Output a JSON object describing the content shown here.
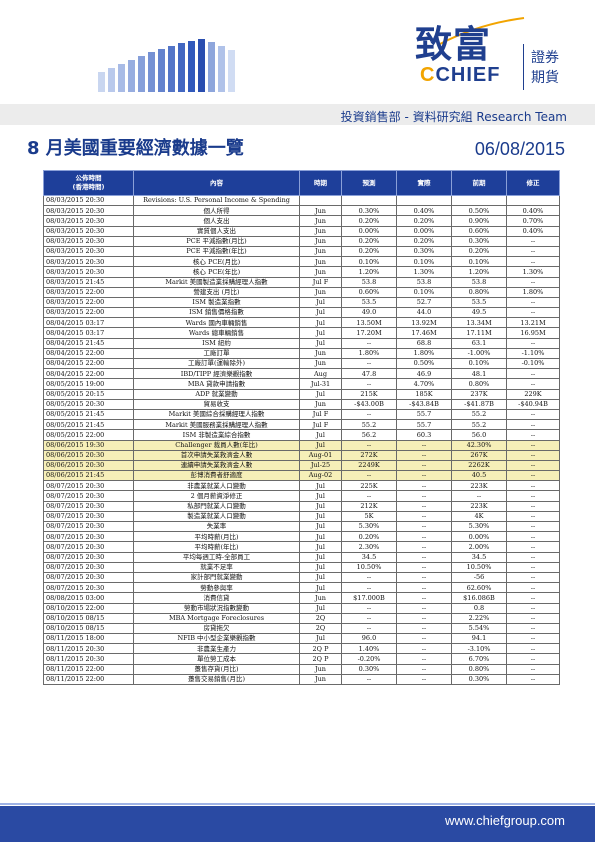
{
  "header": {
    "logo_cn": "致富",
    "logo_en_c": "C",
    "logo_en_rest": "CHIEF",
    "logo_side_1": "證券",
    "logo_side_2": "期貨",
    "department": "投資銷售部 - 資料研究組 Research Team",
    "title": "8 月美國重要經濟數據一覽",
    "date": "06/08/2015",
    "brand_color": "#1a3b8c",
    "accent_color": "#f2a400"
  },
  "table": {
    "headers": {
      "time_line1": "公佈時間",
      "time_line2": "(香港時間)",
      "content": "內容",
      "period": "時期",
      "forecast": "預測",
      "actual": "實際",
      "previous": "前期",
      "revised": "修正"
    },
    "rows": [
      {
        "time": "08/03/2015 20:30",
        "content": "Revisions: U.S. Personal Income & Spending",
        "period": "",
        "forecast": "",
        "actual": "",
        "previous": "",
        "revised": ""
      },
      {
        "time": "08/03/2015 20:30",
        "content": "個人所得",
        "period": "Jun",
        "forecast": "0.30%",
        "actual": "0.40%",
        "previous": "0.50%",
        "revised": "0.40%"
      },
      {
        "time": "08/03/2015 20:30",
        "content": "個人支出",
        "period": "Jun",
        "forecast": "0.20%",
        "actual": "0.20%",
        "previous": "0.90%",
        "revised": "0.70%"
      },
      {
        "time": "08/03/2015 20:30",
        "content": "實質個人支出",
        "period": "Jun",
        "forecast": "0.00%",
        "actual": "0.00%",
        "previous": "0.60%",
        "revised": "0.40%"
      },
      {
        "time": "08/03/2015 20:30",
        "content": "PCE 平減指數(月比)",
        "period": "Jun",
        "forecast": "0.20%",
        "actual": "0.20%",
        "previous": "0.30%",
        "revised": "--"
      },
      {
        "time": "08/03/2015 20:30",
        "content": "PCE 平減指數(年比)",
        "period": "Jun",
        "forecast": "0.20%",
        "actual": "0.30%",
        "previous": "0.20%",
        "revised": "--"
      },
      {
        "time": "08/03/2015 20:30",
        "content": "核心 PCE(月比)",
        "period": "Jun",
        "forecast": "0.10%",
        "actual": "0.10%",
        "previous": "0.10%",
        "revised": "--"
      },
      {
        "time": "08/03/2015 20:30",
        "content": "核心 PCE(年比)",
        "period": "Jun",
        "forecast": "1.20%",
        "actual": "1.30%",
        "previous": "1.20%",
        "revised": "1.30%"
      },
      {
        "time": "08/03/2015 21:45",
        "content": "Markit 美國製造業採購經理人指數",
        "period": "Jul F",
        "forecast": "53.8",
        "actual": "53.8",
        "previous": "53.8",
        "revised": "--"
      },
      {
        "time": "08/03/2015 22:00",
        "content": "營建支出 (月比)",
        "period": "Jun",
        "forecast": "0.60%",
        "actual": "0.10%",
        "previous": "0.80%",
        "revised": "1.80%"
      },
      {
        "time": "08/03/2015 22:00",
        "content": "ISM 製造業指數",
        "period": "Jul",
        "forecast": "53.5",
        "actual": "52.7",
        "previous": "53.5",
        "revised": "--"
      },
      {
        "time": "08/03/2015 22:00",
        "content": "ISM 銷售價格指數",
        "period": "Jul",
        "forecast": "49.0",
        "actual": "44.0",
        "previous": "49.5",
        "revised": "--"
      },
      {
        "time": "08/04/2015 03:17",
        "content": "Wards 國內車輛銷售",
        "period": "Jul",
        "forecast": "13.50M",
        "actual": "13.92M",
        "previous": "13.34M",
        "revised": "13.21M"
      },
      {
        "time": "08/04/2015 03:17",
        "content": "Wards 總車輛銷售",
        "period": "Jul",
        "forecast": "17.20M",
        "actual": "17.46M",
        "previous": "17.11M",
        "revised": "16.95M"
      },
      {
        "time": "08/04/2015 21:45",
        "content": "ISM 紐約",
        "period": "Jul",
        "forecast": "--",
        "actual": "68.8",
        "previous": "63.1",
        "revised": "--"
      },
      {
        "time": "08/04/2015 22:00",
        "content": "工廠訂單",
        "period": "Jun",
        "forecast": "1.80%",
        "actual": "1.80%",
        "previous": "-1.00%",
        "revised": "-1.10%"
      },
      {
        "time": "08/04/2015 22:00",
        "content": "工廠訂單(運輸除外)",
        "period": "Jun",
        "forecast": "--",
        "actual": "0.50%",
        "previous": "0.10%",
        "revised": "-0.10%"
      },
      {
        "time": "08/04/2015 22:00",
        "content": "IBD/TIPP 經濟樂觀指數",
        "period": "Aug",
        "forecast": "47.8",
        "actual": "46.9",
        "previous": "48.1",
        "revised": "--"
      },
      {
        "time": "08/05/2015 19:00",
        "content": "MBA 貸款申請指數",
        "period": "Jul-31",
        "forecast": "--",
        "actual": "4.70%",
        "previous": "0.80%",
        "revised": "--"
      },
      {
        "time": "08/05/2015 20:15",
        "content": "ADP 就業變動",
        "period": "Jul",
        "forecast": "215K",
        "actual": "185K",
        "previous": "237K",
        "revised": "229K"
      },
      {
        "time": "08/05/2015 20:30",
        "content": "貿易收支",
        "period": "Jun",
        "forecast": "-$43.00B",
        "actual": "-$43.84B",
        "previous": "-$41.87B",
        "revised": "-$40.94B"
      },
      {
        "time": "08/05/2015 21:45",
        "content": "Markit 美國綜合採購經理人指數",
        "period": "Jul F",
        "forecast": "--",
        "actual": "55.7",
        "previous": "55.2",
        "revised": "--"
      },
      {
        "time": "08/05/2015 21:45",
        "content": "Markit 美國服務業採購經理人指數",
        "period": "Jul F",
        "forecast": "55.2",
        "actual": "55.7",
        "previous": "55.2",
        "revised": "--"
      },
      {
        "time": "08/05/2015 22:00",
        "content": "ISM 非製造業綜合指數",
        "period": "Jul",
        "forecast": "56.2",
        "actual": "60.3",
        "previous": "56.0",
        "revised": "--"
      },
      {
        "time": "08/06/2015 19:30",
        "content": "Challenger 裁員人數(年比)",
        "period": "Jul",
        "forecast": "--",
        "actual": "--",
        "previous": "42.30%",
        "revised": "--",
        "hl": true
      },
      {
        "time": "08/06/2015 20:30",
        "content": "首次申請失業救濟金人數",
        "period": "Aug-01",
        "forecast": "272K",
        "actual": "--",
        "previous": "267K",
        "revised": "--",
        "hl": true
      },
      {
        "time": "08/06/2015 20:30",
        "content": "連續申請失業救濟金人數",
        "period": "Jul-25",
        "forecast": "2249K",
        "actual": "--",
        "previous": "2262K",
        "revised": "--",
        "hl": true
      },
      {
        "time": "08/06/2015 21:45",
        "content": "彭博消費者舒適度",
        "period": "Aug-02",
        "forecast": "--",
        "actual": "--",
        "previous": "40.5",
        "revised": "--",
        "hl": true
      },
      {
        "time": "08/07/2015 20:30",
        "content": "非農業就業人口變動",
        "period": "Jul",
        "forecast": "225K",
        "actual": "--",
        "previous": "223K",
        "revised": "--"
      },
      {
        "time": "08/07/2015 20:30",
        "content": "2 個月薪資淨修正",
        "period": "Jul",
        "forecast": "--",
        "actual": "--",
        "previous": "--",
        "revised": "--"
      },
      {
        "time": "08/07/2015 20:30",
        "content": "私部門就業人口變動",
        "period": "Jul",
        "forecast": "212K",
        "actual": "--",
        "previous": "223K",
        "revised": "--"
      },
      {
        "time": "08/07/2015 20:30",
        "content": "製造業就業人口變動",
        "period": "Jul",
        "forecast": "5K",
        "actual": "--",
        "previous": "4K",
        "revised": "--"
      },
      {
        "time": "08/07/2015 20:30",
        "content": "失業率",
        "period": "Jul",
        "forecast": "5.30%",
        "actual": "--",
        "previous": "5.30%",
        "revised": "--"
      },
      {
        "time": "08/07/2015 20:30",
        "content": "平均時薪(月比)",
        "period": "Jul",
        "forecast": "0.20%",
        "actual": "--",
        "previous": "0.00%",
        "revised": "--"
      },
      {
        "time": "08/07/2015 20:30",
        "content": "平均時薪(年比)",
        "period": "Jul",
        "forecast": "2.30%",
        "actual": "--",
        "previous": "2.00%",
        "revised": "--"
      },
      {
        "time": "08/07/2015 20:30",
        "content": "平均每週工時-全部員工",
        "period": "Jul",
        "forecast": "34.5",
        "actual": "--",
        "previous": "34.5",
        "revised": "--"
      },
      {
        "time": "08/07/2015 20:30",
        "content": "就業不足率",
        "period": "Jul",
        "forecast": "10.50%",
        "actual": "--",
        "previous": "10.50%",
        "revised": "--"
      },
      {
        "time": "08/07/2015 20:30",
        "content": "家計部門就業變動",
        "period": "Jul",
        "forecast": "--",
        "actual": "--",
        "previous": "-56",
        "revised": "--"
      },
      {
        "time": "08/07/2015 20:30",
        "content": "勞動參與率",
        "period": "Jul",
        "forecast": "--",
        "actual": "--",
        "previous": "62.60%",
        "revised": "--"
      },
      {
        "time": "08/08/2015 03:00",
        "content": "消費信貸",
        "period": "Jun",
        "forecast": "$17.000B",
        "actual": "--",
        "previous": "$16.086B",
        "revised": "--"
      },
      {
        "time": "08/10/2015 22:00",
        "content": "勞動市場狀況指數變動",
        "period": "Jul",
        "forecast": "--",
        "actual": "--",
        "previous": "0.8",
        "revised": "--"
      },
      {
        "time": "08/10/2015 08/15",
        "content": "MBA Mortgage Foreclosures",
        "period": "2Q",
        "forecast": "--",
        "actual": "--",
        "previous": "2.22%",
        "revised": "--"
      },
      {
        "time": "08/10/2015 08/15",
        "content": "房貸拖欠",
        "period": "2Q",
        "forecast": "--",
        "actual": "--",
        "previous": "5.54%",
        "revised": "--"
      },
      {
        "time": "08/11/2015 18:00",
        "content": "NFIB 中小型企業樂觀指數",
        "period": "Jul",
        "forecast": "96.0",
        "actual": "--",
        "previous": "94.1",
        "revised": "--"
      },
      {
        "time": "08/11/2015 20:30",
        "content": "非農業生產力",
        "period": "2Q P",
        "forecast": "1.40%",
        "actual": "--",
        "previous": "-3.10%",
        "revised": "--"
      },
      {
        "time": "08/11/2015 20:30",
        "content": "單位勞工成本",
        "period": "2Q P",
        "forecast": "-0.20%",
        "actual": "--",
        "previous": "6.70%",
        "revised": "--"
      },
      {
        "time": "08/11/2015 22:00",
        "content": "躉售存貨(月比)",
        "period": "Jun",
        "forecast": "0.30%",
        "actual": "--",
        "previous": "0.80%",
        "revised": "--"
      },
      {
        "time": "08/11/2015 22:00",
        "content": "躉售交易銷售(月比)",
        "period": "Jun",
        "forecast": "--",
        "actual": "--",
        "previous": "0.30%",
        "revised": "--"
      }
    ]
  },
  "footer": {
    "url": "www.chiefgroup.com"
  }
}
